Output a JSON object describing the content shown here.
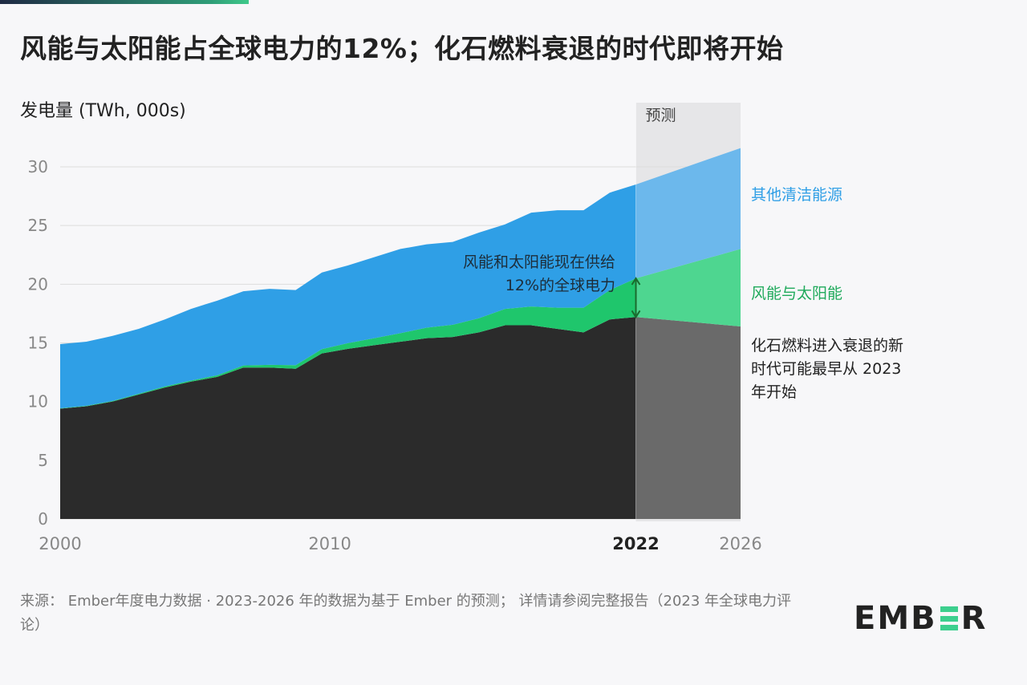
{
  "title": "风能与太阳能占全球电力的12%；化石燃料衰退的时代即将开始",
  "footer": "来源： Ember年度电力数据 · 2023-2026 年的数据为基于 Ember 的预测； 详情请参阅完整报告（2023 年全球电力评论）",
  "logo": "EMBER",
  "colors": {
    "fossil": "#2b2b2b",
    "fossil_forecast": "#6a6a6a",
    "wind_solar": "#1fc66c",
    "wind_solar_forecast": "#4ed690",
    "other_clean": "#2f9fe6",
    "other_clean_forecast": "#6cb8ec",
    "forecast_band": "#e6e6e8",
    "accent_bar": "#3ccf8e"
  },
  "chart_data": {
    "type": "area",
    "stacked": true,
    "ylabel": "发电量 (TWh, 000s)",
    "ylim": [
      0,
      30
    ],
    "yticks": [
      0,
      5,
      10,
      15,
      20,
      25,
      30
    ],
    "xticks": [
      "2000",
      "2010",
      "2022",
      "2026"
    ],
    "xlim": [
      2000,
      2026
    ],
    "grid": true,
    "forecast_label": "预测",
    "forecast_start": 2022,
    "annotation": [
      "风能和太阳能现在供给",
      "12%的全球电力"
    ],
    "x": [
      2000,
      2001,
      2002,
      2003,
      2004,
      2005,
      2006,
      2007,
      2008,
      2009,
      2010,
      2011,
      2012,
      2013,
      2014,
      2015,
      2016,
      2017,
      2018,
      2019,
      2020,
      2021,
      2022,
      2026
    ],
    "series": [
      {
        "key": "fossil",
        "name": "化石燃料进入衰退的新时代可能最早从 2023 年开始",
        "label_lines": [
          "化石燃料进入衰退的新",
          "时代可能最早从 2023",
          "年开始"
        ],
        "values": [
          9.4,
          9.6,
          10.0,
          10.6,
          11.2,
          11.7,
          12.1,
          12.9,
          12.9,
          12.8,
          14.1,
          14.5,
          14.8,
          15.1,
          15.4,
          15.5,
          15.9,
          16.5,
          16.5,
          16.2,
          15.9,
          17.0,
          17.2,
          16.4
        ]
      },
      {
        "key": "wind_solar",
        "name": "风能与太阳能",
        "values": [
          0.03,
          0.04,
          0.05,
          0.07,
          0.09,
          0.1,
          0.14,
          0.18,
          0.23,
          0.3,
          0.37,
          0.48,
          0.6,
          0.73,
          0.9,
          1.05,
          1.2,
          1.4,
          1.6,
          1.8,
          2.1,
          2.5,
          3.3,
          6.6
        ]
      },
      {
        "key": "other_clean",
        "name": "其他清洁能源",
        "values": [
          5.47,
          5.46,
          5.55,
          5.53,
          5.71,
          6.1,
          6.36,
          6.32,
          6.47,
          6.4,
          6.53,
          6.62,
          6.9,
          7.17,
          7.1,
          7.05,
          7.3,
          7.2,
          8.0,
          8.3,
          8.3,
          8.3,
          8.0,
          8.6
        ]
      }
    ]
  }
}
